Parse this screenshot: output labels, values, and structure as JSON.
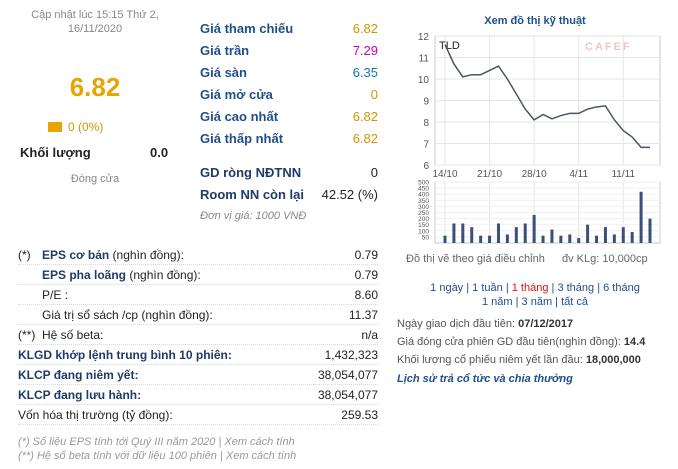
{
  "summary": {
    "update_text": "Cập nhật lúc 15:15 Thứ 2, 16/11/2020",
    "price": "6.82",
    "change": "0 (0%)",
    "volume_label": "Khối lượng",
    "volume_value": "0.0",
    "status": "Đóng cửa"
  },
  "prices": [
    {
      "label": "Giá tham chiếu",
      "value": "6.82"
    },
    {
      "label": "Giá trần",
      "value": "7.29"
    },
    {
      "label": "Giá sàn",
      "value": "6.35"
    },
    {
      "label": "Giá mở cửa",
      "value": "0"
    },
    {
      "label": "Giá cao nhất",
      "value": "6.82"
    },
    {
      "label": "Giá thấp nhất",
      "value": "6.82"
    }
  ],
  "foreign": [
    {
      "label": "GD ròng NĐTNN",
      "value": "0"
    },
    {
      "label": "Room NN còn lại",
      "value": "42.52 (%)"
    }
  ],
  "unit_note": "Đơn vị giá: 1000 VNĐ",
  "fundamentals": [
    {
      "mark": "(*)",
      "label_bold": "EPS cơ bản",
      "label_rest": " (nghìn đồng):",
      "value": "0.79"
    },
    {
      "mark": "",
      "label_bold": "EPS pha loãng",
      "label_rest": " (nghìn đồng):",
      "value": "0.79"
    },
    {
      "mark": "",
      "label_bold": "",
      "label_rest": "P/E :",
      "value": "8.60"
    },
    {
      "mark": "",
      "label_bold": "",
      "label_rest": "Giá trị sổ sách /cp (nghìn đồng):",
      "value": "11.37"
    },
    {
      "mark": "(**)",
      "label_bold": "",
      "label_rest": "Hệ số beta:",
      "value": "n/a"
    },
    {
      "mark": "",
      "label_bold": "KLGD khớp lệnh trung bình 10 phiên:",
      "label_rest": "",
      "value": "1,432,323"
    },
    {
      "mark": "",
      "label_bold": "KLCP đang niêm yết:",
      "label_rest": "",
      "value": "38,054,077"
    },
    {
      "mark": "",
      "label_bold": "KLCP đang lưu hành:",
      "label_rest": "",
      "value": "38,054,077"
    },
    {
      "mark": "",
      "label_bold": "",
      "label_rest": "Vốn hóa thị trường (tỷ đồng):",
      "value": "259.53"
    }
  ],
  "notes": [
    "(*) Số liệu EPS tính tới Quý III năm 2020 | Xem cách tính",
    "(**) Hệ số beta tính với dữ liệu 100 phiên | Xem cách tính"
  ],
  "chart": {
    "title": "Xem đồ thị kỹ thuật",
    "ticker": "TLD",
    "watermark": "CAFEF",
    "note_left": "Đồ thị vẽ theo giá điều chỉnh",
    "note_right": "đv KLg: 10,000cp",
    "colors": {
      "line": "#4b5563",
      "bars": "#3b4f7a",
      "grid": "#e5e5e5",
      "watermark": "#f3c6c6"
    }
  },
  "chart_data": {
    "type": "line",
    "title": "",
    "ylim": [
      6,
      12
    ],
    "yticks": [
      "12",
      "11",
      "10",
      "9",
      "8",
      "7",
      "6"
    ],
    "xticks": [
      "14/10",
      "21/10",
      "28/10",
      "4/11",
      "11/11"
    ],
    "x": [
      "14/10",
      "15/10",
      "16/10",
      "19/10",
      "20/10",
      "21/10",
      "22/10",
      "23/10",
      "26/10",
      "27/10",
      "28/10",
      "29/10",
      "30/10",
      "2/11",
      "3/11",
      "4/11",
      "5/11",
      "6/11",
      "9/11",
      "10/11",
      "11/11",
      "12/11",
      "13/11",
      "16/11"
    ],
    "price": [
      11.6,
      10.7,
      10.1,
      10.2,
      10.2,
      10.4,
      10.6,
      10.0,
      9.3,
      8.6,
      8.1,
      8.35,
      8.15,
      8.3,
      8.4,
      8.4,
      8.6,
      8.7,
      8.75,
      8.1,
      7.6,
      7.3,
      6.82,
      6.82
    ],
    "volume_yticks": [
      "500",
      "450",
      "400",
      "350",
      "300",
      "250",
      "200",
      "150",
      "100",
      "50"
    ],
    "volume_ylim": [
      0,
      500
    ],
    "volume": [
      60,
      160,
      160,
      130,
      60,
      60,
      160,
      70,
      130,
      160,
      230,
      60,
      110,
      60,
      70,
      40,
      150,
      60,
      130,
      70,
      130,
      90,
      420,
      200
    ]
  },
  "periods": {
    "line1": [
      {
        "label": "1 ngày",
        "active": false
      },
      {
        "label": "1 tuần",
        "active": false
      },
      {
        "label": "1 tháng",
        "active": true
      },
      {
        "label": "3 tháng",
        "active": false
      },
      {
        "label": "6 tháng",
        "active": false
      }
    ],
    "line2": [
      {
        "label": "1 năm",
        "active": false
      },
      {
        "label": "3 năm",
        "active": false
      },
      {
        "label": "tất cả",
        "active": false
      }
    ]
  },
  "listing": {
    "first_trade_label": "Ngày giao dịch đầu tiên: ",
    "first_trade_value": "07/12/2017",
    "first_price_label": "Giá đóng cửa phiên GD đầu tiên(nghìn đồng): ",
    "first_price_value": "14.4",
    "first_vol_label": "Khối lượng cổ phiếu niêm yết lần đầu: ",
    "first_vol_value": "18,000,000",
    "history_link": "Lịch sử trả cổ tức và chia thưởng"
  }
}
